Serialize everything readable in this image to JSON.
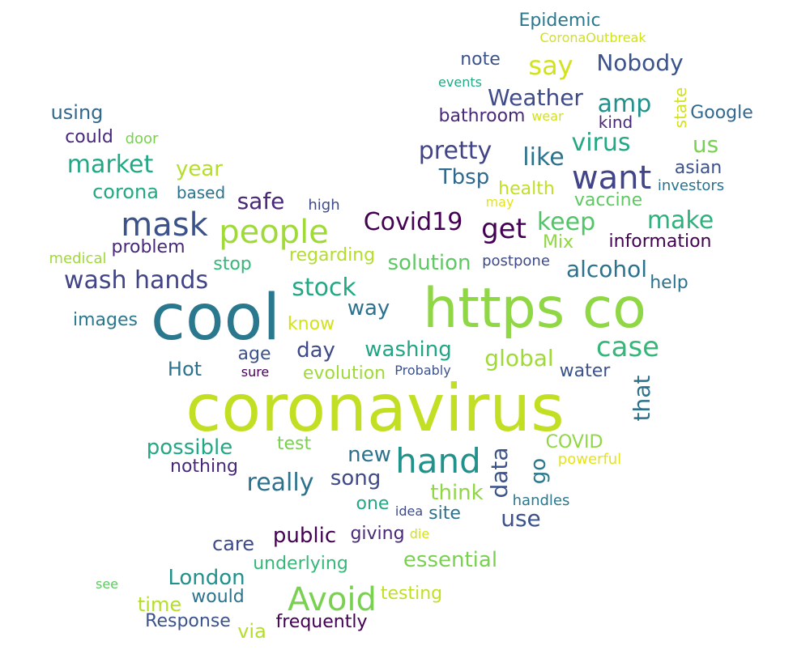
{
  "words": [
    {
      "text": "coronavirus",
      "color": "#c2df23"
    },
    {
      "text": "cool",
      "color": "#2a788e"
    },
    {
      "text": "https co",
      "color": "#8fd744"
    },
    {
      "text": "hand",
      "color": "#21918c"
    },
    {
      "text": "mask",
      "color": "#3b528b"
    },
    {
      "text": "people",
      "color": "#a0da39"
    },
    {
      "text": "want",
      "color": "#414487"
    },
    {
      "text": "Avoid",
      "color": "#7ad151"
    },
    {
      "text": "case",
      "color": "#35b779"
    },
    {
      "text": "wash hands",
      "color": "#414487"
    },
    {
      "text": "get",
      "color": "#440154"
    },
    {
      "text": "pretty",
      "color": "#414487"
    },
    {
      "text": "Covid19",
      "color": "#440154"
    },
    {
      "text": "market",
      "color": "#22a884"
    },
    {
      "text": "stock",
      "color": "#22a884"
    },
    {
      "text": "make",
      "color": "#2db27d"
    },
    {
      "text": "really",
      "color": "#2c728e"
    },
    {
      "text": "like",
      "color": "#2c728e"
    },
    {
      "text": "virus",
      "color": "#22a884"
    },
    {
      "text": "say",
      "color": "#d2e21b"
    },
    {
      "text": "amp",
      "color": "#21918c"
    },
    {
      "text": "keep",
      "color": "#52c569"
    },
    {
      "text": "Nobody",
      "color": "#3b528b"
    },
    {
      "text": "Weather",
      "color": "#3e4a89"
    },
    {
      "text": "safe",
      "color": "#482878"
    },
    {
      "text": "use",
      "color": "#3b528b"
    },
    {
      "text": "data",
      "color": "#3b528b"
    },
    {
      "text": "that",
      "color": "#2c728e"
    },
    {
      "text": "alcohol",
      "color": "#2c728e"
    },
    {
      "text": "solution",
      "color": "#5ec962"
    },
    {
      "text": "washing",
      "color": "#21a685"
    },
    {
      "text": "global",
      "color": "#a0da39"
    },
    {
      "text": "essential",
      "color": "#7ad151"
    },
    {
      "text": "London",
      "color": "#21918c"
    },
    {
      "text": "possible",
      "color": "#22a884"
    },
    {
      "text": "go",
      "color": "#2a788e"
    },
    {
      "text": "us",
      "color": "#7ad151"
    },
    {
      "text": "Tbsp",
      "color": "#31688e"
    },
    {
      "text": "think",
      "color": "#8fd744"
    },
    {
      "text": "public",
      "color": "#440154"
    },
    {
      "text": "year",
      "color": "#b5de2b"
    },
    {
      "text": "way",
      "color": "#2c728e"
    },
    {
      "text": "song",
      "color": "#3e4a89"
    },
    {
      "text": "day",
      "color": "#3e4a89"
    },
    {
      "text": "new",
      "color": "#2c728e"
    },
    {
      "text": "corona",
      "color": "#22a884"
    },
    {
      "text": "Hot",
      "color": "#2c728e"
    },
    {
      "text": "time",
      "color": "#b5de2b"
    },
    {
      "text": "via",
      "color": "#b5de2b"
    },
    {
      "text": "using",
      "color": "#31688e"
    },
    {
      "text": "care",
      "color": "#3e4a89"
    },
    {
      "text": "testing",
      "color": "#c2df23"
    },
    {
      "text": "test",
      "color": "#7ad151"
    },
    {
      "text": "frequently",
      "color": "#440154"
    },
    {
      "text": "underlying",
      "color": "#35b779"
    },
    {
      "text": "Epidemic",
      "color": "#2a788e"
    },
    {
      "text": "note",
      "color": "#3b528b"
    },
    {
      "text": "health",
      "color": "#c2df23"
    },
    {
      "text": "bathroom",
      "color": "#482878"
    },
    {
      "text": "information",
      "color": "#440154"
    },
    {
      "text": "vaccine",
      "color": "#5ec962"
    },
    {
      "text": "Google",
      "color": "#31688e"
    },
    {
      "text": "asian",
      "color": "#3b528b"
    },
    {
      "text": "Response",
      "color": "#3b528b"
    },
    {
      "text": "giving",
      "color": "#482878"
    },
    {
      "text": "COVID",
      "color": "#8fd744"
    },
    {
      "text": "Mix",
      "color": "#8fd744"
    },
    {
      "text": "evolution",
      "color": "#a0da39"
    },
    {
      "text": "nothing",
      "color": "#482878"
    },
    {
      "text": "water",
      "color": "#3b528b"
    },
    {
      "text": "regarding",
      "color": "#b5de2b"
    },
    {
      "text": "age",
      "color": "#3b528b"
    },
    {
      "text": "help",
      "color": "#2c728e"
    },
    {
      "text": "could",
      "color": "#482878"
    },
    {
      "text": "based",
      "color": "#2c728e"
    },
    {
      "text": "problem",
      "color": "#482878"
    },
    {
      "text": "stop",
      "color": "#35b779"
    },
    {
      "text": "images",
      "color": "#2a788e"
    },
    {
      "text": "know",
      "color": "#d2e21b"
    },
    {
      "text": "site",
      "color": "#2c728e"
    },
    {
      "text": "one",
      "color": "#22a884"
    },
    {
      "text": "would",
      "color": "#2c728e"
    },
    {
      "text": "kind",
      "color": "#482878"
    },
    {
      "text": "state",
      "color": "#d2e21b"
    },
    {
      "text": "CoronaOutbreak",
      "color": "#d2e21b"
    },
    {
      "text": "events",
      "color": "#22a884"
    },
    {
      "text": "wear",
      "color": "#d2e21b"
    },
    {
      "text": "door",
      "color": "#7ad151"
    },
    {
      "text": "medical",
      "color": "#a0da39"
    },
    {
      "text": "investors",
      "color": "#2c728e"
    },
    {
      "text": "may",
      "color": "#e5e419"
    },
    {
      "text": "high",
      "color": "#3e4a89"
    },
    {
      "text": "postpone",
      "color": "#3e4a89"
    },
    {
      "text": "Probably",
      "color": "#3b528b"
    },
    {
      "text": "sure",
      "color": "#440154"
    },
    {
      "text": "powerful",
      "color": "#e5e419"
    },
    {
      "text": "handles",
      "color": "#2a788e"
    },
    {
      "text": "idea",
      "color": "#3e4a89"
    },
    {
      "text": "die",
      "color": "#d2e21b"
    },
    {
      "text": "see",
      "color": "#5ec962"
    }
  ]
}
